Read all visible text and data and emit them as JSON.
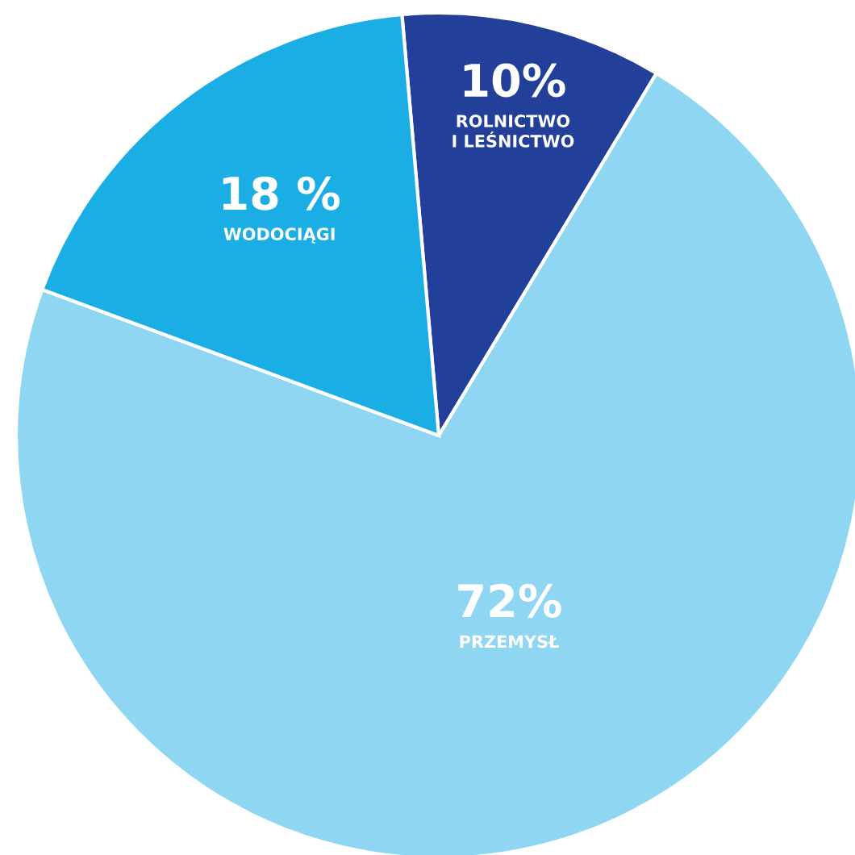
{
  "chart_data": {
    "type": "pie",
    "categories": [
      "ROLNICTWO\nI LEŚNICTWO",
      "PRZEMYSŁ",
      "WODOCIĄGI"
    ],
    "values": [
      10,
      72,
      18
    ],
    "value_labels": [
      "10%",
      "72%",
      "18 %"
    ],
    "colors": [
      "#223f99",
      "#8fd6f3",
      "#1aaee5"
    ],
    "legend": false
  }
}
